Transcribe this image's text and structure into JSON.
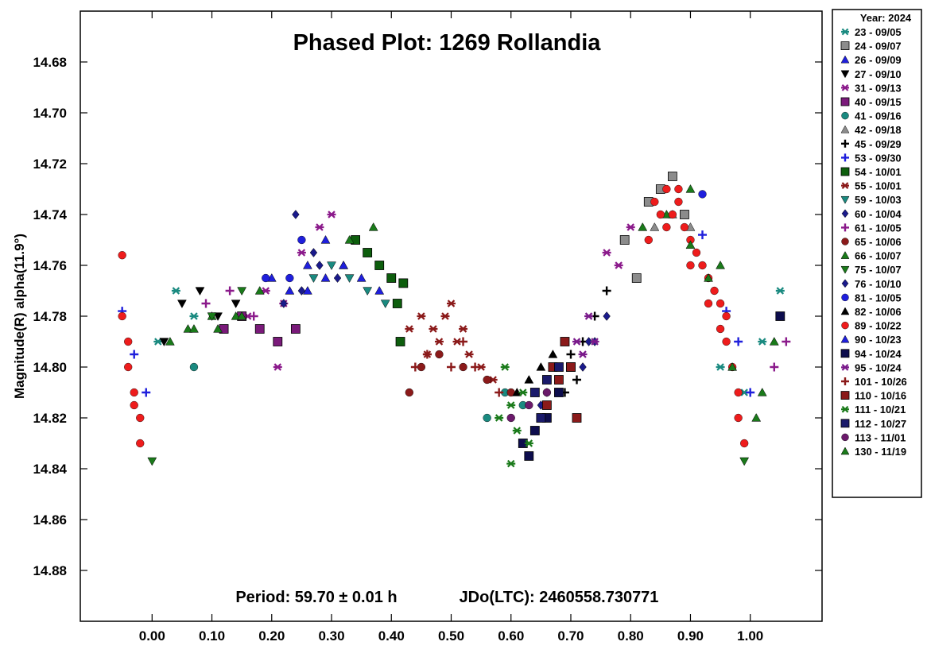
{
  "chart_data": {
    "type": "scatter",
    "title": "Phased Plot: 1269 Rollandia",
    "ylabel": "Magnitude(R) alpha(11.9°)",
    "xlabel": "",
    "period_text": "Period: 59.70 ± 0.01 h",
    "jdo_text": "JDo(LTC): 2460558.730771",
    "xlim": [
      -0.12,
      1.12
    ],
    "ylim": [
      14.66,
      14.9
    ],
    "y_inverted": true,
    "grid": false,
    "legend_placement": "right-outside",
    "x_ticks": [
      "0.00",
      "0.10",
      "0.20",
      "0.30",
      "0.40",
      "0.50",
      "0.60",
      "0.70",
      "0.80",
      "0.90",
      "1.00"
    ],
    "y_ticks": [
      "14.68",
      "14.70",
      "14.72",
      "14.74",
      "14.76",
      "14.78",
      "14.80",
      "14.82",
      "14.84",
      "14.86",
      "14.88"
    ],
    "legend_title": "Year: 2024",
    "series": [
      {
        "name": "23 - 09/05",
        "marker": "asterisk",
        "color": "#1a8a80",
        "points": [
          [
            0.01,
            14.79
          ],
          [
            0.04,
            14.77
          ],
          [
            0.07,
            14.78
          ],
          [
            0.95,
            14.8
          ],
          [
            0.99,
            14.81
          ],
          [
            1.02,
            14.79
          ],
          [
            1.05,
            14.77
          ]
        ]
      },
      {
        "name": "24 - 09/07",
        "marker": "square",
        "color": "#8c8c8c",
        "points": [
          [
            0.83,
            14.735
          ],
          [
            0.85,
            14.73
          ],
          [
            0.87,
            14.725
          ],
          [
            0.89,
            14.74
          ],
          [
            0.81,
            14.765
          ],
          [
            0.79,
            14.75
          ]
        ]
      },
      {
        "name": "26 - 09/09",
        "marker": "triangle-up",
        "color": "#1f1fdc",
        "points": [
          [
            0.2,
            14.765
          ],
          [
            0.23,
            14.77
          ],
          [
            0.26,
            14.76
          ],
          [
            0.29,
            14.75
          ],
          [
            0.32,
            14.76
          ]
        ]
      },
      {
        "name": "27 - 09/10",
        "marker": "triangle-down",
        "color": "#000000",
        "points": [
          [
            0.02,
            14.79
          ],
          [
            0.05,
            14.775
          ],
          [
            0.08,
            14.77
          ],
          [
            0.11,
            14.78
          ],
          [
            0.14,
            14.775
          ]
        ]
      },
      {
        "name": "31 - 09/13",
        "marker": "asterisk",
        "color": "#8b1a8b",
        "points": [
          [
            0.16,
            14.78
          ],
          [
            0.19,
            14.77
          ],
          [
            0.22,
            14.775
          ],
          [
            0.25,
            14.755
          ],
          [
            0.28,
            14.745
          ],
          [
            0.3,
            14.74
          ],
          [
            0.76,
            14.755
          ],
          [
            0.78,
            14.76
          ],
          [
            0.8,
            14.745
          ],
          [
            0.21,
            14.8
          ]
        ]
      },
      {
        "name": "40 - 09/15",
        "marker": "square",
        "color": "#7a1a7a",
        "points": [
          [
            0.12,
            14.785
          ],
          [
            0.15,
            14.78
          ],
          [
            0.18,
            14.785
          ],
          [
            0.21,
            14.79
          ],
          [
            0.24,
            14.785
          ]
        ]
      },
      {
        "name": "41 - 09/16",
        "marker": "circle",
        "color": "#1a8a80",
        "points": [
          [
            0.56,
            14.82
          ],
          [
            0.59,
            14.81
          ],
          [
            0.62,
            14.815
          ],
          [
            0.07,
            14.8
          ]
        ]
      },
      {
        "name": "42 - 09/18",
        "marker": "triangle-up",
        "color": "#8c8c8c",
        "points": [
          [
            0.84,
            14.745
          ],
          [
            0.87,
            14.74
          ],
          [
            0.9,
            14.745
          ]
        ]
      },
      {
        "name": "45 - 09/29",
        "marker": "plus",
        "color": "#000000",
        "points": [
          [
            0.68,
            14.8
          ],
          [
            0.7,
            14.795
          ],
          [
            0.72,
            14.79
          ],
          [
            0.74,
            14.78
          ],
          [
            0.76,
            14.77
          ],
          [
            0.71,
            14.805
          ],
          [
            0.69,
            14.81
          ]
        ]
      },
      {
        "name": "53 - 09/30",
        "marker": "plus",
        "color": "#1f1fdc",
        "points": [
          [
            -0.05,
            14.778
          ],
          [
            -0.03,
            14.795
          ],
          [
            -0.01,
            14.81
          ],
          [
            0.96,
            14.778
          ],
          [
            0.98,
            14.79
          ],
          [
            1.0,
            14.81
          ],
          [
            0.92,
            14.748
          ]
        ]
      },
      {
        "name": "54 - 10/01",
        "marker": "square",
        "color": "#0d5e0d",
        "points": [
          [
            0.34,
            14.75
          ],
          [
            0.36,
            14.755
          ],
          [
            0.38,
            14.76
          ],
          [
            0.4,
            14.765
          ],
          [
            0.41,
            14.775
          ],
          [
            0.42,
            14.767
          ],
          [
            0.415,
            14.79
          ]
        ]
      },
      {
        "name": "55 - 10/01",
        "marker": "asterisk",
        "color": "#8b1a1a",
        "points": [
          [
            0.43,
            14.785
          ],
          [
            0.45,
            14.78
          ],
          [
            0.47,
            14.785
          ],
          [
            0.49,
            14.78
          ],
          [
            0.51,
            14.79
          ],
          [
            0.53,
            14.795
          ],
          [
            0.55,
            14.8
          ],
          [
            0.57,
            14.805
          ],
          [
            0.5,
            14.775
          ],
          [
            0.46,
            14.795
          ],
          [
            0.52,
            14.785
          ],
          [
            0.48,
            14.79
          ]
        ]
      },
      {
        "name": "59 - 10/03",
        "marker": "triangle-down",
        "color": "#1a8a80",
        "points": [
          [
            0.27,
            14.765
          ],
          [
            0.3,
            14.76
          ],
          [
            0.33,
            14.765
          ],
          [
            0.36,
            14.77
          ],
          [
            0.39,
            14.775
          ]
        ]
      },
      {
        "name": "60 - 10/04",
        "marker": "diamond",
        "color": "#1a1a8b",
        "points": [
          [
            0.22,
            14.775
          ],
          [
            0.25,
            14.77
          ],
          [
            0.28,
            14.76
          ],
          [
            0.31,
            14.765
          ],
          [
            0.24,
            14.74
          ],
          [
            0.27,
            14.755
          ],
          [
            0.74,
            14.79
          ],
          [
            0.72,
            14.8
          ],
          [
            0.76,
            14.78
          ]
        ]
      },
      {
        "name": "61 - 10/05",
        "marker": "plus",
        "color": "#8b1a8b",
        "points": [
          [
            0.09,
            14.775
          ],
          [
            0.13,
            14.77
          ],
          [
            0.17,
            14.78
          ],
          [
            1.04,
            14.8
          ],
          [
            1.06,
            14.79
          ]
        ]
      },
      {
        "name": "65 - 10/06",
        "marker": "circle",
        "color": "#8b1a1a",
        "points": [
          [
            0.45,
            14.8
          ],
          [
            0.48,
            14.795
          ],
          [
            0.52,
            14.8
          ],
          [
            0.56,
            14.805
          ],
          [
            0.43,
            14.81
          ],
          [
            0.6,
            14.81
          ]
        ]
      },
      {
        "name": "66 - 10/07",
        "marker": "triangle-up",
        "color": "#1a7a1a",
        "points": [
          [
            0.06,
            14.785
          ],
          [
            0.1,
            14.78
          ],
          [
            0.14,
            14.78
          ],
          [
            0.18,
            14.77
          ],
          [
            0.33,
            14.75
          ],
          [
            0.37,
            14.745
          ],
          [
            0.82,
            14.745
          ],
          [
            0.86,
            14.74
          ],
          [
            0.9,
            14.73
          ],
          [
            0.95,
            14.76
          ],
          [
            1.01,
            14.82
          ]
        ]
      },
      {
        "name": "75 - 10/07",
        "marker": "triangle-down",
        "color": "#1a7a1a",
        "points": [
          [
            0.0,
            14.837
          ],
          [
            0.99,
            14.837
          ],
          [
            0.1,
            14.78
          ],
          [
            0.15,
            14.77
          ]
        ]
      },
      {
        "name": "76 - 10/10",
        "marker": "diamond",
        "color": "#1a1a8b",
        "points": [
          [
            0.66,
            14.81
          ],
          [
            0.68,
            14.805
          ],
          [
            0.7,
            14.8
          ],
          [
            0.65,
            14.815
          ],
          [
            0.73,
            14.79
          ]
        ]
      },
      {
        "name": "81 - 10/05",
        "marker": "circle",
        "color": "#1f1fdc",
        "points": [
          [
            0.19,
            14.765
          ],
          [
            0.23,
            14.765
          ],
          [
            0.92,
            14.732
          ],
          [
            0.25,
            14.75
          ]
        ]
      },
      {
        "name": "82 - 10/06",
        "marker": "triangle-up",
        "color": "#000000",
        "points": [
          [
            0.61,
            14.81
          ],
          [
            0.63,
            14.805
          ],
          [
            0.65,
            14.8
          ],
          [
            0.67,
            14.795
          ]
        ]
      },
      {
        "name": "89 - 10/22",
        "marker": "circle",
        "color": "#ee1c1c",
        "points": [
          [
            -0.05,
            14.756
          ],
          [
            -0.05,
            14.78
          ],
          [
            -0.04,
            14.79
          ],
          [
            -0.04,
            14.8
          ],
          [
            -0.03,
            14.81
          ],
          [
            -0.02,
            14.82
          ],
          [
            -0.02,
            14.83
          ],
          [
            -0.03,
            14.815
          ],
          [
            0.84,
            14.735
          ],
          [
            0.86,
            14.73
          ],
          [
            0.87,
            14.74
          ],
          [
            0.88,
            14.735
          ],
          [
            0.89,
            14.745
          ],
          [
            0.9,
            14.75
          ],
          [
            0.91,
            14.755
          ],
          [
            0.92,
            14.76
          ],
          [
            0.93,
            14.765
          ],
          [
            0.94,
            14.77
          ],
          [
            0.95,
            14.775
          ],
          [
            0.96,
            14.78
          ],
          [
            0.96,
            14.79
          ],
          [
            0.97,
            14.8
          ],
          [
            0.98,
            14.81
          ],
          [
            0.98,
            14.82
          ],
          [
            0.99,
            14.83
          ],
          [
            0.85,
            14.74
          ],
          [
            0.86,
            14.745
          ],
          [
            0.83,
            14.75
          ],
          [
            0.88,
            14.73
          ],
          [
            0.9,
            14.76
          ],
          [
            0.93,
            14.775
          ],
          [
            0.95,
            14.785
          ]
        ]
      },
      {
        "name": "90 - 10/23",
        "marker": "triangle-up",
        "color": "#1f1fdc",
        "points": [
          [
            0.26,
            14.77
          ],
          [
            0.29,
            14.765
          ],
          [
            0.32,
            14.76
          ],
          [
            0.35,
            14.765
          ],
          [
            0.38,
            14.77
          ]
        ]
      },
      {
        "name": "94 - 10/24",
        "marker": "square",
        "color": "#0d0d4d",
        "points": [
          [
            0.62,
            14.83
          ],
          [
            0.64,
            14.825
          ],
          [
            0.66,
            14.82
          ],
          [
            0.68,
            14.81
          ],
          [
            0.7,
            14.8
          ],
          [
            0.63,
            14.835
          ],
          [
            1.05,
            14.78
          ]
        ]
      },
      {
        "name": "95 - 10/24",
        "marker": "asterisk",
        "color": "#7a1a8b",
        "points": [
          [
            0.7,
            14.8
          ],
          [
            0.72,
            14.795
          ],
          [
            0.74,
            14.79
          ],
          [
            0.71,
            14.79
          ],
          [
            0.73,
            14.78
          ]
        ]
      },
      {
        "name": "101 - 10/26",
        "marker": "plus",
        "color": "#8b1a1a",
        "points": [
          [
            0.46,
            14.795
          ],
          [
            0.5,
            14.8
          ],
          [
            0.54,
            14.8
          ],
          [
            0.58,
            14.81
          ],
          [
            0.44,
            14.8
          ],
          [
            0.52,
            14.79
          ]
        ]
      },
      {
        "name": "110 - 10/16",
        "marker": "square",
        "color": "#8b1a1a",
        "points": [
          [
            0.66,
            14.815
          ],
          [
            0.68,
            14.805
          ],
          [
            0.7,
            14.8
          ],
          [
            0.69,
            14.79
          ],
          [
            0.71,
            14.82
          ],
          [
            0.67,
            14.8
          ]
        ]
      },
      {
        "name": "111 - 10/21",
        "marker": "asterisk",
        "color": "#1a7a1a",
        "points": [
          [
            0.58,
            14.82
          ],
          [
            0.6,
            14.815
          ],
          [
            0.62,
            14.81
          ],
          [
            0.59,
            14.8
          ],
          [
            0.63,
            14.83
          ],
          [
            0.61,
            14.825
          ],
          [
            0.6,
            14.838
          ]
        ]
      },
      {
        "name": "112 - 10/27",
        "marker": "square",
        "color": "#1a1a6b",
        "points": [
          [
            0.64,
            14.81
          ],
          [
            0.66,
            14.805
          ],
          [
            0.68,
            14.8
          ],
          [
            0.65,
            14.82
          ]
        ]
      },
      {
        "name": "113 - 11/01",
        "marker": "circle",
        "color": "#6b1a6b",
        "points": [
          [
            0.6,
            14.82
          ],
          [
            0.63,
            14.815
          ],
          [
            0.66,
            14.81
          ]
        ]
      },
      {
        "name": "130 - 11/19",
        "marker": "triangle-up",
        "color": "#1a7a1a",
        "points": [
          [
            0.03,
            14.79
          ],
          [
            0.07,
            14.785
          ],
          [
            0.11,
            14.785
          ],
          [
            0.15,
            14.78
          ],
          [
            0.9,
            14.752
          ],
          [
            0.93,
            14.765
          ],
          [
            0.97,
            14.8
          ],
          [
            1.02,
            14.81
          ],
          [
            1.04,
            14.79
          ]
        ]
      }
    ]
  }
}
